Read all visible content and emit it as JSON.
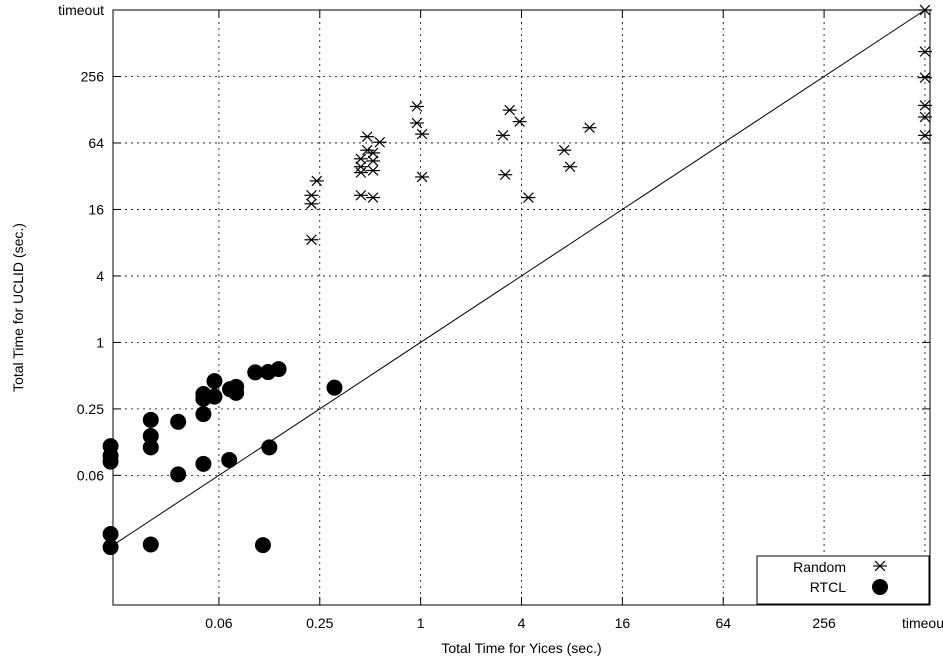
{
  "chart_data": {
    "type": "scatter",
    "title": "",
    "xlabel": "Total Time for Yices (sec.)",
    "ylabel": "Total Time for UCLID (sec.)",
    "x_scale": "log2",
    "y_scale": "log2",
    "xlim_log2": [
      -6.1,
      10.1
    ],
    "ylim_log2": [
      -7.9,
      10.0
    ],
    "x_ticks": [
      {
        "label": "0.06",
        "value": 0.0625
      },
      {
        "label": "0.25",
        "value": 0.25
      },
      {
        "label": "1",
        "value": 1
      },
      {
        "label": "4",
        "value": 4
      },
      {
        "label": "16",
        "value": 16
      },
      {
        "label": "64",
        "value": 64
      },
      {
        "label": "256",
        "value": 256
      },
      {
        "label": "timeout",
        "value": 1024
      }
    ],
    "y_ticks": [
      {
        "label": "0.06",
        "value": 0.0625
      },
      {
        "label": "0.25",
        "value": 0.25
      },
      {
        "label": "1",
        "value": 1
      },
      {
        "label": "4",
        "value": 4
      },
      {
        "label": "16",
        "value": 16
      },
      {
        "label": "64",
        "value": 64
      },
      {
        "label": "256",
        "value": 256
      },
      {
        "label": "timeout",
        "value": 1024
      }
    ],
    "grid": true,
    "diagonal": true,
    "legend_position": "bottom-right",
    "series": [
      {
        "name": "Random",
        "marker": "asterisk",
        "points": [
          [
            0.223,
            8.5
          ],
          [
            0.223,
            18
          ],
          [
            0.223,
            21.5
          ],
          [
            0.24,
            29
          ],
          [
            0.44,
            21.5
          ],
          [
            0.44,
            34.5
          ],
          [
            0.44,
            39
          ],
          [
            0.44,
            46
          ],
          [
            0.48,
            55
          ],
          [
            0.48,
            73
          ],
          [
            0.52,
            20.5
          ],
          [
            0.52,
            36
          ],
          [
            0.52,
            44
          ],
          [
            0.52,
            52
          ],
          [
            0.57,
            65
          ],
          [
            0.95,
            137
          ],
          [
            0.95,
            97
          ],
          [
            1.02,
            77
          ],
          [
            1.02,
            31.5
          ],
          [
            3.1,
            75
          ],
          [
            3.2,
            33
          ],
          [
            3.4,
            127
          ],
          [
            3.9,
            100
          ],
          [
            4.4,
            20.5
          ],
          [
            7.2,
            55
          ],
          [
            7.8,
            39
          ],
          [
            10.2,
            88
          ],
          [
            1024,
            1024
          ],
          [
            1024,
            430
          ],
          [
            1024,
            250
          ],
          [
            1024,
            140
          ],
          [
            1024,
            110
          ],
          [
            1024,
            75
          ]
        ]
      },
      {
        "name": "RTCL",
        "marker": "circle",
        "points": [
          [
            0.0141,
            0.0184
          ],
          [
            0.0141,
            0.014
          ],
          [
            0.0141,
            0.115
          ],
          [
            0.0141,
            0.094
          ],
          [
            0.0141,
            0.0832
          ],
          [
            0.0245,
            0.0148
          ],
          [
            0.0245,
            0.112
          ],
          [
            0.0245,
            0.142
          ],
          [
            0.0245,
            0.199
          ],
          [
            0.0357,
            0.191
          ],
          [
            0.0357,
            0.0638
          ],
          [
            0.0505,
            0.0794
          ],
          [
            0.0505,
            0.224
          ],
          [
            0.0505,
            0.309
          ],
          [
            0.0505,
            0.341
          ],
          [
            0.0588,
            0.323
          ],
          [
            0.0588,
            0.446
          ],
          [
            0.072,
            0.0862
          ],
          [
            0.0728,
            0.377
          ],
          [
            0.0792,
            0.349
          ],
          [
            0.0792,
            0.396
          ],
          [
            0.103,
            0.535
          ],
          [
            0.1145,
            0.0146
          ],
          [
            0.123,
            0.539
          ],
          [
            0.125,
            0.112
          ],
          [
            0.142,
            0.573
          ],
          [
            0.306,
            0.389
          ]
        ]
      }
    ]
  }
}
